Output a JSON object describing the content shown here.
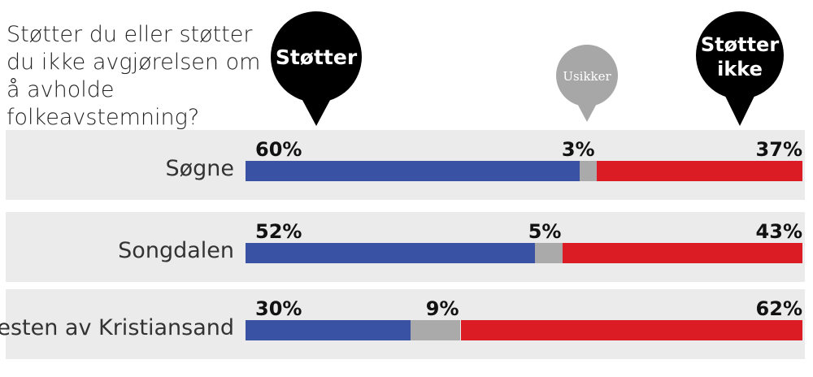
{
  "question": "Støtter du eller støtter du ikke avgjørelsen om å avholde folkeavstemning?",
  "bubbles": {
    "support": "Støtter",
    "unsure": "Usikker",
    "against_line1": "Støtter",
    "against_line2": "ikke"
  },
  "colors": {
    "support": "#3a52a4",
    "unsure": "#aaaaaa",
    "against": "#dc1c24"
  },
  "chart_data": {
    "type": "bar",
    "stacked": true,
    "orientation": "horizontal",
    "categories": [
      "Søgne",
      "Songdalen",
      "Resten av Kristiansand"
    ],
    "series": [
      {
        "name": "Støtter",
        "values": [
          60,
          52,
          30
        ]
      },
      {
        "name": "Usikker",
        "values": [
          3,
          5,
          9
        ]
      },
      {
        "name": "Støtter ikke",
        "values": [
          37,
          43,
          62
        ]
      }
    ],
    "labels": [
      [
        "60%",
        "3%",
        "37%"
      ],
      [
        "52%",
        "5%",
        "43%"
      ],
      [
        "30%",
        "9%",
        "62%"
      ]
    ]
  }
}
